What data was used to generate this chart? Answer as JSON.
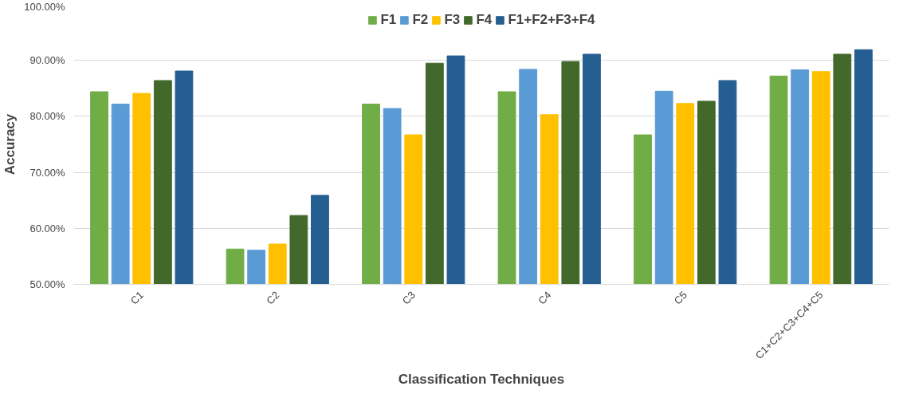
{
  "chart_data": {
    "type": "bar",
    "xlabel": "Classification Techniques",
    "ylabel": "Accuracy",
    "categories": [
      "C1",
      "C2",
      "C3",
      "C4",
      "C5",
      "C1+C2+C3+C4+C5"
    ],
    "series": [
      {
        "name": "F1",
        "color": "#70ad47",
        "values": [
          84.4,
          56.3,
          82.2,
          84.4,
          76.7,
          87.2
        ]
      },
      {
        "name": "F2",
        "color": "#5b9bd5",
        "values": [
          82.2,
          56.1,
          81.4,
          88.4,
          84.5,
          88.3
        ]
      },
      {
        "name": "F3",
        "color": "#ffc000",
        "values": [
          84.1,
          57.2,
          76.7,
          80.3,
          82.3,
          88.0
        ]
      },
      {
        "name": "F4",
        "color": "#43682b",
        "values": [
          86.4,
          62.3,
          89.5,
          89.8,
          82.7,
          91.1
        ]
      },
      {
        "name": "F1+F2+F3+F4",
        "color": "#255e91",
        "values": [
          88.1,
          65.9,
          90.8,
          91.1,
          86.4,
          91.9
        ]
      }
    ],
    "ylim": [
      50,
      100
    ],
    "yticks": [
      {
        "value": 50,
        "label": "50.00%"
      },
      {
        "value": 60,
        "label": "60.00%"
      },
      {
        "value": 70,
        "label": "70.00%"
      },
      {
        "value": 80,
        "label": "80.00%"
      },
      {
        "value": 90,
        "label": "90.00%"
      },
      {
        "value": 100,
        "label": "100.00%"
      }
    ],
    "grid": "y",
    "legend": "top"
  }
}
